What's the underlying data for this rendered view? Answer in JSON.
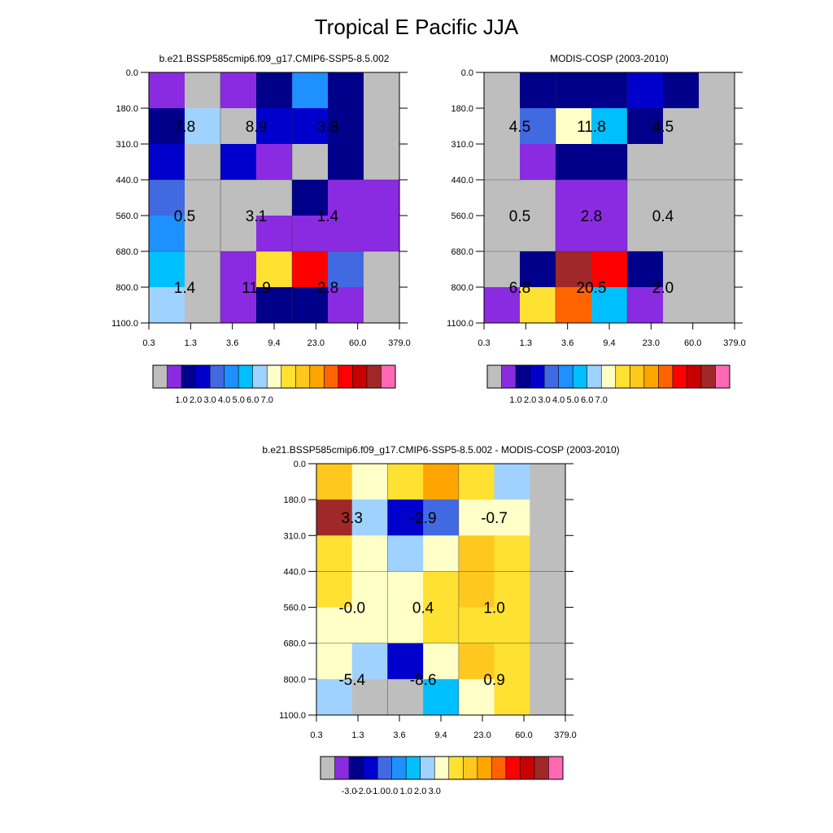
{
  "page": {
    "title": "Tropical E Pacific JJA"
  },
  "chart_data": [
    {
      "type": "heatmap",
      "title": "b.e21.BSSP585cmip6.f09_g17.CMIP6-SSP5-8.5.002",
      "x_ticks": [
        "0.3",
        "1.3",
        "3.6",
        "9.4",
        "23.0",
        "60.0",
        "379.0"
      ],
      "y_ticks": [
        "0.0",
        "180.0",
        "310.0",
        "440.0",
        "560.0",
        "680.0",
        "800.0",
        "1100.0"
      ],
      "cells": [
        [
          1,
          0,
          1,
          2,
          5,
          2,
          0
        ],
        [
          2,
          7,
          0,
          3,
          3,
          2,
          0
        ],
        [
          3,
          0,
          3,
          1,
          0,
          2,
          0
        ],
        [
          4,
          0,
          0,
          0,
          2,
          1,
          1
        ],
        [
          5,
          0,
          0,
          1,
          1,
          1,
          1
        ],
        [
          6,
          0,
          1,
          9,
          13,
          4,
          0
        ],
        [
          7,
          0,
          1,
          2,
          2,
          1,
          0
        ]
      ],
      "box_labels": [
        "7.8",
        "8.9",
        "3.8",
        "0.5",
        "3.1",
        "1.4",
        "1.4",
        "11.9",
        "2.8"
      ],
      "colorbar_labels": [
        "1.0",
        "2.0",
        "3.0",
        "4.0",
        "5.0",
        "6.0",
        "7.0"
      ]
    },
    {
      "type": "heatmap",
      "title": "MODIS-COSP (2003-2010)",
      "x_ticks": [
        "0.3",
        "1.3",
        "3.6",
        "9.4",
        "23.0",
        "60.0",
        "379.0"
      ],
      "y_ticks": [
        "0.0",
        "180.0",
        "310.0",
        "440.0",
        "560.0",
        "680.0",
        "800.0",
        "1100.0"
      ],
      "cells": [
        [
          0,
          2,
          2,
          2,
          3,
          2,
          0
        ],
        [
          0,
          4,
          8,
          6,
          2,
          0,
          0
        ],
        [
          0,
          1,
          2,
          2,
          0,
          0,
          0
        ],
        [
          0,
          0,
          1,
          1,
          0,
          0,
          0
        ],
        [
          0,
          0,
          1,
          1,
          0,
          0,
          0
        ],
        [
          0,
          2,
          15,
          13,
          2,
          0,
          0
        ],
        [
          1,
          9,
          12,
          6,
          1,
          0,
          0
        ]
      ],
      "box_labels": [
        "4.5",
        "11.8",
        "4.5",
        "0.5",
        "2.8",
        "0.4",
        "6.8",
        "20.5",
        "2.0"
      ],
      "colorbar_labels": [
        "1.0",
        "2.0",
        "3.0",
        "4.0",
        "5.0",
        "6.0",
        "7.0"
      ]
    },
    {
      "type": "heatmap",
      "title": "b.e21.BSSP585cmip6.f09_g17.CMIP6-SSP5-8.5.002 - MODIS-COSP (2003-2010)",
      "x_ticks": [
        "0.3",
        "1.3",
        "3.6",
        "9.4",
        "23.0",
        "60.0",
        "379.0"
      ],
      "y_ticks": [
        "0.0",
        "180.0",
        "310.0",
        "440.0",
        "560.0",
        "680.0",
        "800.0",
        "1100.0"
      ],
      "cells": [
        [
          10,
          8,
          9,
          11,
          9,
          7,
          0
        ],
        [
          15,
          7,
          3,
          4,
          8,
          8,
          0
        ],
        [
          9,
          8,
          7,
          8,
          10,
          9,
          0
        ],
        [
          9,
          8,
          8,
          9,
          10,
          9,
          0
        ],
        [
          8,
          8,
          8,
          9,
          9,
          9,
          0
        ],
        [
          8,
          7,
          3,
          8,
          10,
          9,
          0
        ],
        [
          7,
          0,
          0,
          6,
          8,
          9,
          0
        ]
      ],
      "box_labels": [
        "3.3",
        "-2.9",
        "-0.7",
        "-0.0",
        "0.4",
        "1.0",
        "-5.4",
        "-8.6",
        "0.9"
      ],
      "colorbar_labels": [
        "-3.0",
        "-2.0",
        "-1.0",
        "0.0",
        "1.0",
        "2.0",
        "3.0"
      ]
    }
  ],
  "colors": {
    "palette": [
      "#bebebe",
      "#8a2be2",
      "#00008b",
      "#0000cd",
      "#4169e1",
      "#1e90ff",
      "#00bfff",
      "#a0d2ff",
      "#ffffc8",
      "#ffe132",
      "#ffc81e",
      "#ffa500",
      "#ff6400",
      "#ff0000",
      "#c80000",
      "#a02828",
      "#ff69b4"
    ]
  }
}
